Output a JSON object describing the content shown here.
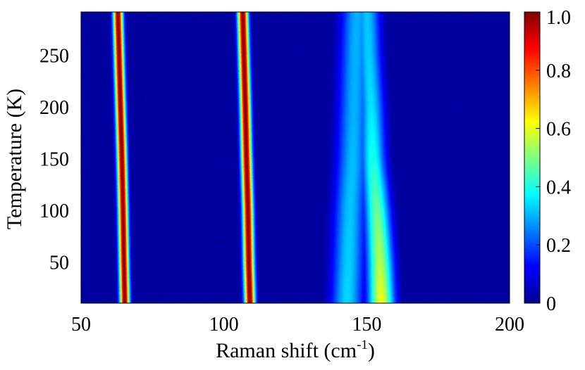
{
  "chart_data": {
    "type": "heatmap",
    "title": "",
    "xlabel": "Raman shift (cm",
    "xlabel_sup": "-1",
    "xlabel_suffix": ")",
    "ylabel": "Temperature (K)",
    "xlim": [
      50,
      200
    ],
    "ylim": [
      10,
      292
    ],
    "x_ticks": [
      "50",
      "100",
      "150",
      "200"
    ],
    "x_tick_values": [
      50,
      100,
      150,
      200
    ],
    "y_ticks": [
      "50",
      "100",
      "150",
      "200",
      "250"
    ],
    "y_tick_values": [
      50,
      100,
      150,
      200,
      250
    ],
    "colorbar": {
      "range": [
        0,
        1.0
      ],
      "ticks": [
        "0",
        "0.2",
        "0.4",
        "0.6",
        "0.8",
        "1.0"
      ],
      "tick_values": [
        0,
        0.2,
        0.4,
        0.6,
        0.8,
        1.0
      ],
      "colormap": "jet"
    },
    "peaks": [
      {
        "temperature": [
          10,
          50,
          100,
          150,
          200,
          250,
          292
        ],
        "position": [
          65.2,
          64.9,
          64.6,
          64.2,
          63.7,
          63.2,
          62.8
        ],
        "intensity": [
          1.0,
          1.0,
          1.0,
          1.0,
          1.0,
          1.0,
          1.0
        ],
        "width": 1.2
      },
      {
        "temperature": [
          10,
          50,
          100,
          150,
          200,
          250,
          292
        ],
        "position": [
          109.0,
          108.6,
          108.3,
          107.8,
          107.4,
          106.9,
          106.5
        ],
        "intensity": [
          1.0,
          1.0,
          1.0,
          1.0,
          1.0,
          1.0,
          1.0
        ],
        "width": 1.3
      },
      {
        "temperature": [
          10,
          50,
          100,
          150,
          200,
          250,
          292
        ],
        "position": [
          155.0,
          154.5,
          153.5,
          152.0,
          151.5,
          150.5,
          150.0
        ],
        "intensity": [
          0.62,
          0.55,
          0.48,
          0.4,
          0.35,
          0.33,
          0.32
        ],
        "width": 3.2
      },
      {
        "temperature": [
          10,
          50,
          100,
          150,
          200,
          250,
          292
        ],
        "position": [
          143.0,
          143.5,
          144.0,
          145.0,
          145.5,
          146.0,
          146.5
        ],
        "intensity": [
          0.34,
          0.33,
          0.32,
          0.31,
          0.3,
          0.3,
          0.3
        ],
        "width": 4.0
      }
    ],
    "background_level": 0.03
  }
}
